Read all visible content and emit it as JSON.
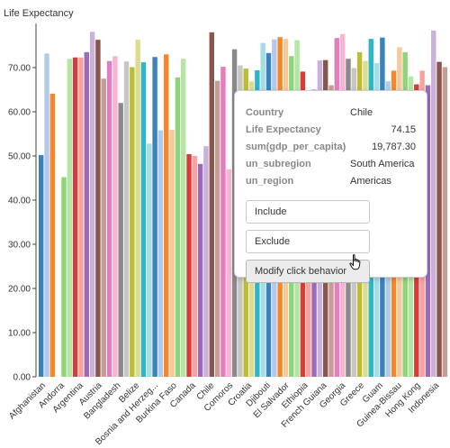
{
  "chart_data": {
    "type": "bar",
    "title": "",
    "ylabel": "Life Expectancy",
    "xlabel": "",
    "ylim": [
      0,
      80
    ],
    "yticks": [
      "0.00",
      "10.00",
      "20.00",
      "30.00",
      "40.00",
      "50.00",
      "60.00",
      "70.00"
    ],
    "x_tick_labels": [
      "Afghanistan",
      "Andorra",
      "Argentina",
      "Austria",
      "Bangladesh",
      "Belize",
      "Bosnia and Herzeg...",
      "Burkina Faso",
      "Canada",
      "Chile",
      "Comoros",
      "Croatia",
      "Djibouti",
      "El Salvador",
      "Ethiopia",
      "French Guiana",
      "Georgia",
      "Greece",
      "Guam",
      "Guinea-Bissau",
      "Hong Kong",
      "Indonesia"
    ],
    "values": [
      50.2,
      73.2,
      64.1,
      0,
      45.2,
      72.0,
      72.3,
      72.3,
      73.5,
      78.1,
      76.3,
      67.5,
      71.5,
      72.6,
      62.0,
      71.4,
      70.1,
      76.3,
      71.2,
      52.8,
      72.4,
      55.8,
      73.0,
      55.9,
      67.8,
      72.0,
      50.4,
      50.0,
      48.2,
      52.2,
      78.0,
      67.0,
      70.2,
      47.0,
      74.15,
      70.5,
      69.8,
      66.9,
      69.4,
      75.6,
      73.3,
      76.4,
      76.9,
      76.5,
      72.6,
      76.2,
      69.1,
      62.5,
      65.0,
      71.6,
      71.7,
      66.0,
      76.7,
      77.6,
      72.0,
      69.9,
      73.5,
      71.5,
      76.5,
      71.0,
      76.8,
      66.9,
      69.3,
      74.6,
      73.5,
      68.0,
      66.2,
      69.3,
      66.0,
      78.4,
      71.3,
      70.1
    ],
    "colors": [
      "#3B82BD",
      "#AFCAEB",
      "#F7862B",
      "#F7C89C",
      "#8DD57A",
      "#B5E5A3",
      "#D93A3A",
      "#F6A29E",
      "#9A6BB8",
      "#C9B1D9",
      "#8A564B",
      "#C59D94",
      "#E47DC0",
      "#F5B5D3",
      "#8A8A8A",
      "#C6C6C6",
      "#BCBD33",
      "#DCDC8E",
      "#2FB5C8",
      "#A5DDE6"
    ],
    "grid": false,
    "legend": "none"
  },
  "tooltip": {
    "rows": [
      {
        "key": "Country",
        "value": "Chile"
      },
      {
        "key": "Life Expectancy",
        "value": "74.15"
      },
      {
        "key": "sum(gdp_per_capita)",
        "value": "19,787.30"
      },
      {
        "key": "un_subregion",
        "value": "South America"
      },
      {
        "key": "un_region",
        "value": "Americas"
      }
    ],
    "include_label": "Include",
    "exclude_label": "Exclude",
    "modify_label": "Modify click behavior"
  },
  "icons": {
    "cursor": "hand-pointer-icon"
  }
}
